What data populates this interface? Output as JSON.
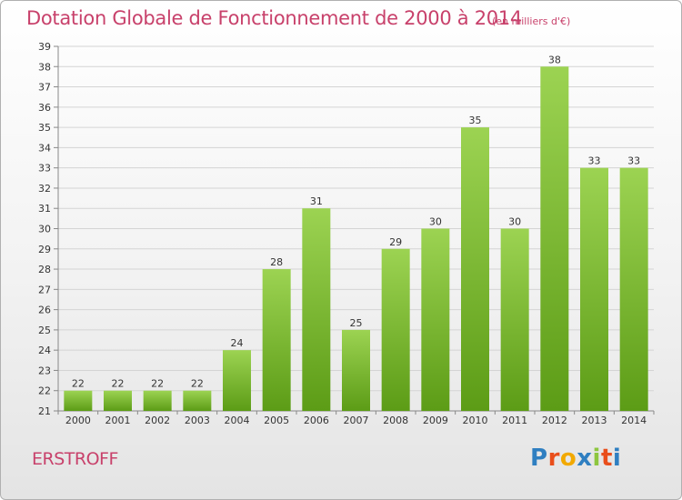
{
  "header": {
    "title": "Dotation Globale de Fonctionnement de 2000 à 2014",
    "subtitle": "(en milliers d'€)"
  },
  "footer": {
    "commune": "ERSTROFF",
    "brand": "Proxiti",
    "brand_colors": [
      "#2f7fc1",
      "#e94e1b",
      "#f2a900",
      "#2f7fc1",
      "#8dc63f",
      "#e94e1b",
      "#2f7fc1"
    ]
  },
  "colors": {
    "title": "#c8416b",
    "bar_top": "#9cd352",
    "bar_bottom": "#5c9c16",
    "grid": "#d4d4d4"
  },
  "chart_data": {
    "type": "bar",
    "categories": [
      "2000",
      "2001",
      "2002",
      "2003",
      "2004",
      "2005",
      "2006",
      "2007",
      "2008",
      "2009",
      "2010",
      "2011",
      "2012",
      "2013",
      "2014"
    ],
    "values": [
      22,
      22,
      22,
      22,
      24,
      28,
      31,
      25,
      29,
      30,
      35,
      30,
      38,
      33,
      33
    ],
    "ylim": [
      21,
      39
    ],
    "yticks": [
      21,
      22,
      23,
      24,
      25,
      26,
      27,
      28,
      29,
      30,
      31,
      32,
      33,
      34,
      35,
      36,
      37,
      38,
      39
    ],
    "grid": true,
    "xlabel": "",
    "ylabel": ""
  }
}
